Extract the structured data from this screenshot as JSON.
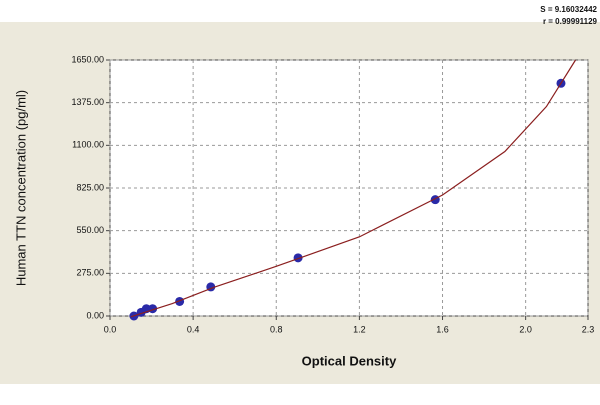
{
  "chart_data": {
    "type": "scatter",
    "x_label": "Optical Density",
    "y_label": "Human TTN concentration (pg/ml)",
    "annotations": [
      "S = 9.16032442",
      "r = 0.99991129"
    ],
    "xlim": [
      0,
      2.3
    ],
    "xticks": [
      {
        "value": 0,
        "label": "0.0"
      },
      0.4,
      0.8,
      1.2,
      1.6,
      {
        "value": 2,
        "label": "2.0"
      },
      2.3
    ],
    "ylim": [
      0,
      1650
    ],
    "yticks": [
      {
        "value": 0,
        "label": "0.00"
      },
      {
        "value": 275,
        "label": "275.00"
      },
      {
        "value": 550,
        "label": "550.00"
      },
      {
        "value": 825,
        "label": "825.00"
      },
      {
        "value": 1100,
        "label": "1100.00"
      },
      {
        "value": 1375,
        "label": "1375.00"
      },
      {
        "value": 1650,
        "label": "1650.00"
      }
    ],
    "grid": true,
    "series": [
      {
        "type": "scatter",
        "color": "#2a2aa8",
        "x": [
          0.115,
          0.15,
          0.175,
          0.205,
          0.335,
          0.485,
          0.905,
          1.565,
          2.17
        ],
        "values": [
          0,
          23.44,
          46.88,
          46.88,
          93.75,
          187.5,
          375,
          750,
          1500
        ]
      },
      {
        "type": "line",
        "color": "#8b1f1f",
        "x": [
          0.1,
          0.3,
          0.5,
          0.8,
          1.2,
          1.6,
          1.9,
          2.1,
          2.24
        ],
        "values": [
          -5,
          80,
          185,
          320,
          510,
          780,
          1060,
          1350,
          1650
        ]
      }
    ]
  }
}
